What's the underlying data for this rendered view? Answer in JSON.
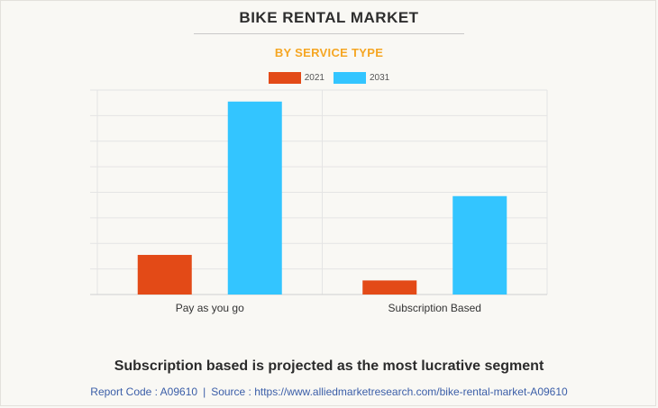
{
  "chart_data": {
    "type": "bar",
    "title": "BIKE RENTAL MARKET",
    "subtitle": "BY SERVICE TYPE",
    "categories": [
      "Pay as you go",
      "Subscription Based"
    ],
    "series": [
      {
        "name": "2021",
        "color": "#e34a17",
        "values": [
          1.55,
          0.55
        ]
      },
      {
        "name": "2031",
        "color": "#33c5ff",
        "values": [
          7.55,
          3.85
        ]
      }
    ],
    "ylim": [
      0,
      8
    ],
    "grid": true,
    "legend_position": "top-center",
    "xlabel": "",
    "ylabel": ""
  },
  "headline": "Subscription based is projected as the most lucrative segment",
  "footer": {
    "report_code": "Report Code : A09610",
    "separator": "|",
    "source": "Source : https://www.alliedmarketresearch.com/bike-rental-market-A09610"
  }
}
